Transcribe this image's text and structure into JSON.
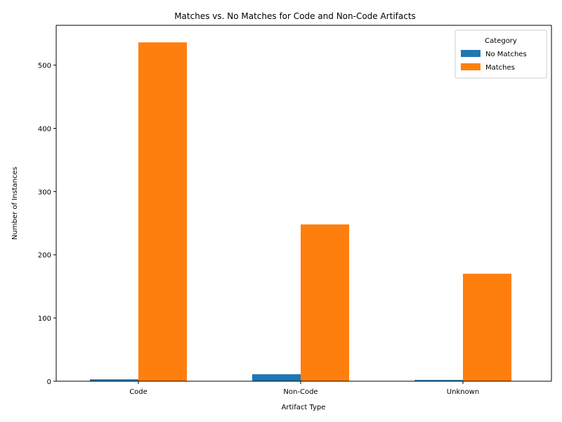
{
  "chart_data": {
    "type": "bar",
    "title": "Matches vs. No Matches for Code and Non-Code Artifacts",
    "xlabel": "Artifact Type",
    "ylabel": "Number of Instances",
    "categories": [
      "Code",
      "Non-Code",
      "Unknown"
    ],
    "series": [
      {
        "name": "No Matches",
        "values": [
          3,
          11,
          2
        ],
        "color": "#1f77b4"
      },
      {
        "name": "Matches",
        "values": [
          536,
          248,
          170
        ],
        "color": "#ff7f0e"
      }
    ],
    "ylim": [
      0,
      563
    ],
    "yticks": [
      0,
      100,
      200,
      300,
      400,
      500
    ],
    "grid": false,
    "legend": {
      "title": "Category",
      "position": "top-right"
    }
  }
}
